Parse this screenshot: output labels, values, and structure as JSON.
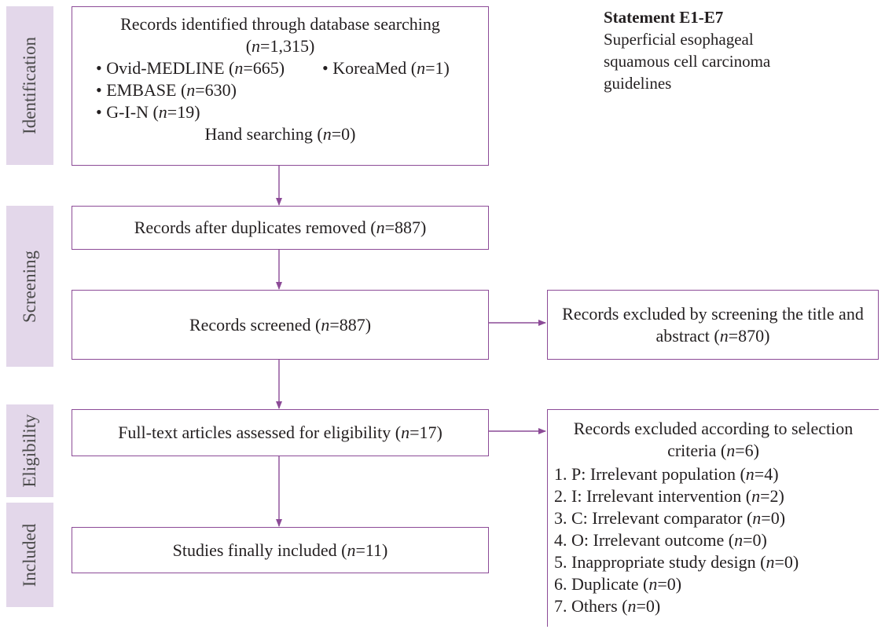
{
  "phases": [
    {
      "id": "identification",
      "label": "Identification"
    },
    {
      "id": "screening",
      "label": "Screening"
    },
    {
      "id": "eligibility",
      "label": "Eligibility"
    },
    {
      "id": "included",
      "label": "Included"
    }
  ],
  "identification": {
    "line1": "Records identified through database searching",
    "total": "(n=1,315)",
    "sources": [
      "• Ovid-MEDLINE (n=665)",
      "• KoreaMed (n=1)",
      "• EMBASE (n=630)",
      "• G-I-N (n=19)"
    ],
    "hand": "Hand searching (n=0)"
  },
  "duplicates_removed": "Records after duplicates removed (n=887)",
  "screened": "Records screened (n=887)",
  "excluded_screening": {
    "line1": "Records excluded by screening the title and",
    "line2": "abstract (n=870)"
  },
  "fulltext": "Full-text articles assessed for eligibility (n=17)",
  "excluded_criteria": {
    "line1": "Records excluded according to selection",
    "line2": "criteria (n=6)",
    "items": [
      "1. P: Irrelevant population (n=4)",
      "2. I: Irrelevant intervention (n=2)",
      "3. C: Irrelevant comparator (n=0)",
      "4. O: Irrelevant outcome (n=0)",
      "5. Inappropriate study design (n=0)",
      "6. Duplicate (n=0)",
      "7. Others (n=0)"
    ]
  },
  "included_box": "Studies finally included (n=11)",
  "statement": {
    "title": "Statement E1-E7",
    "lines": [
      "Superficial esophageal",
      "squamous cell carcinoma",
      "guidelines"
    ]
  },
  "colors": {
    "arrow": "#8c4b97",
    "phase_bg": "#e3d7ea"
  }
}
